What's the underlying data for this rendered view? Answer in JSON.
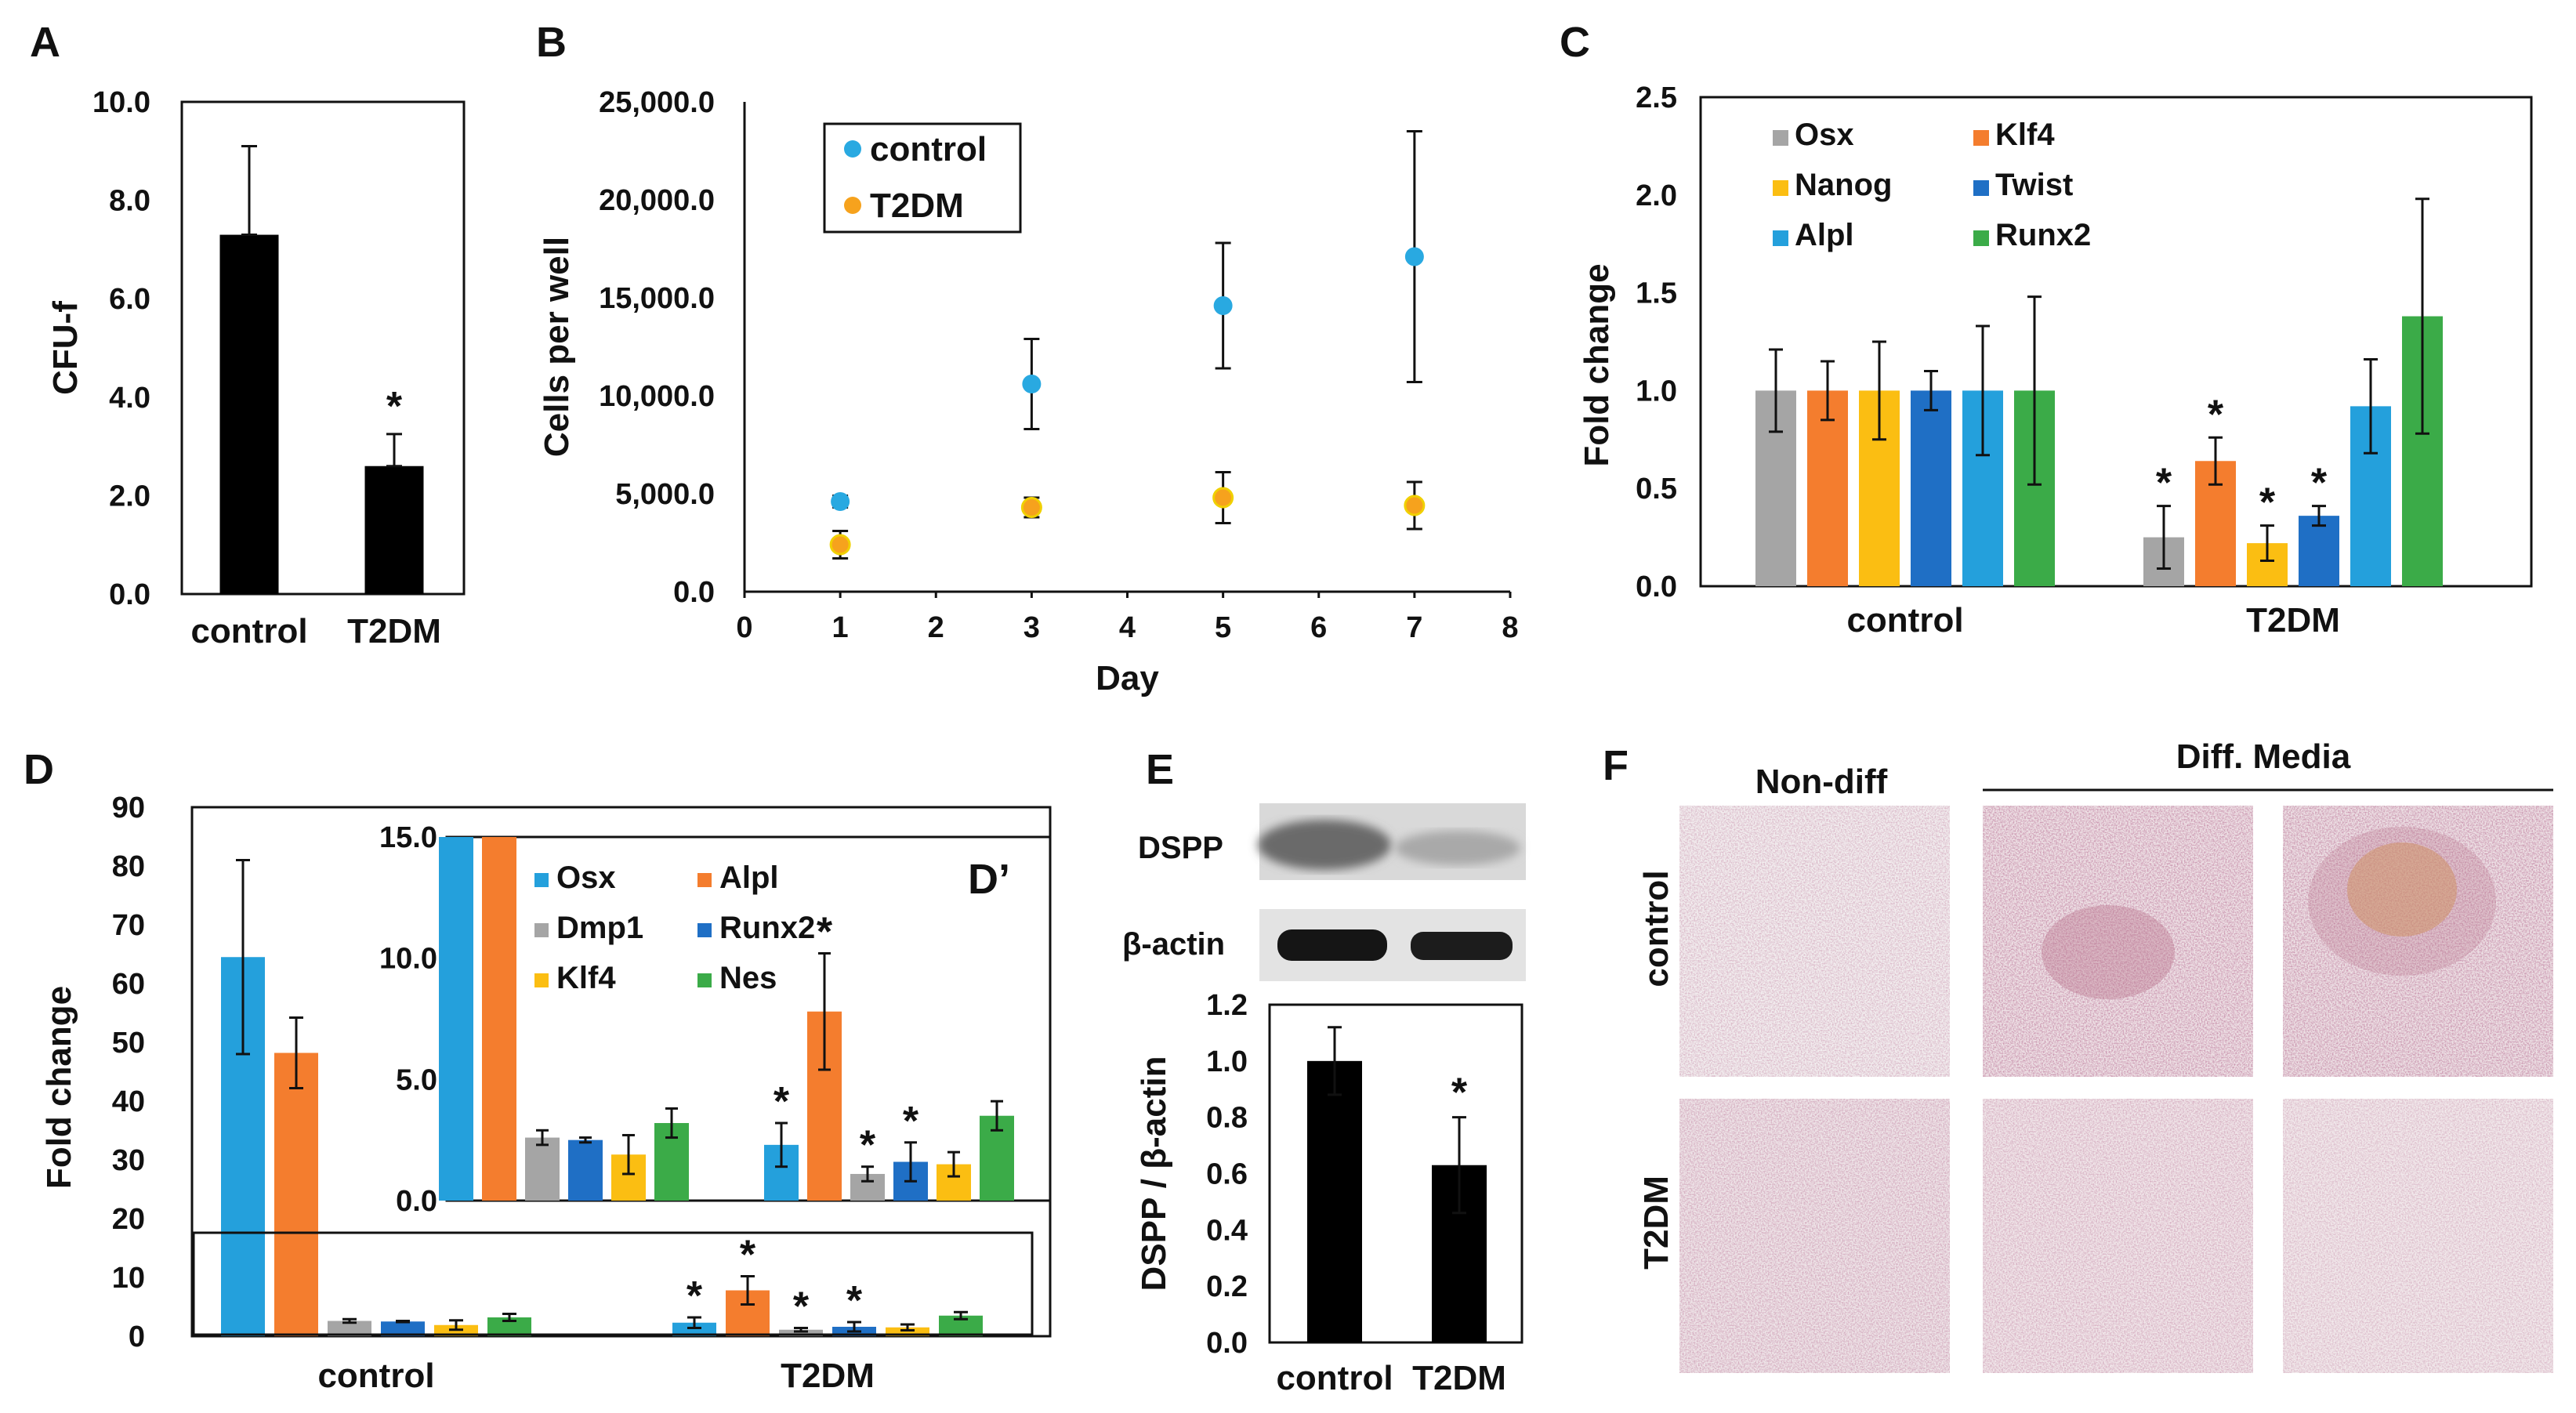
{
  "chart_data": [
    {
      "id": "A",
      "type": "bar",
      "panel_label": "A",
      "ylabel": "CFU-f",
      "xlabel": "",
      "categories": [
        "control",
        "T2DM"
      ],
      "values": [
        7.3,
        2.6
      ],
      "errors": [
        1.8,
        0.65
      ],
      "significant": [
        false,
        true
      ],
      "ylim": [
        0,
        10
      ],
      "yticks": [
        "0.0",
        "2.0",
        "4.0",
        "6.0",
        "8.0",
        "10.0"
      ],
      "bar_color": "#000000",
      "star": "*"
    },
    {
      "id": "B",
      "type": "scatter",
      "panel_label": "B",
      "xlabel": "Day",
      "ylabel": "Cells per well",
      "xlim": [
        0,
        8
      ],
      "xticks": [
        "0",
        "1",
        "2",
        "3",
        "4",
        "5",
        "6",
        "7",
        "8"
      ],
      "ylim": [
        0,
        25000
      ],
      "yticks": [
        "0.0",
        "5,000.0",
        "10,000.0",
        "15,000.0",
        "20,000.0",
        "25,000.0"
      ],
      "legend_position": "top-left",
      "series": [
        {
          "name": "control",
          "color": "#29a9e1",
          "x": [
            1,
            3,
            5,
            7
          ],
          "y": [
            4600,
            10600,
            14600,
            17100
          ],
          "err": [
            300,
            2300,
            3200,
            6400
          ]
        },
        {
          "name": "T2DM",
          "color": "#f6a21d",
          "x": [
            1,
            3,
            5,
            7
          ],
          "y": [
            2400,
            4300,
            4800,
            4400
          ],
          "err": [
            700,
            500,
            1300,
            1200
          ]
        }
      ]
    },
    {
      "id": "C",
      "type": "bar",
      "panel_label": "C",
      "ylabel": "Fold change",
      "xlabel": "",
      "categories": [
        "control",
        "T2DM"
      ],
      "ylim": [
        0,
        2.5
      ],
      "yticks": [
        "0.0",
        "0.5",
        "1.0",
        "1.5",
        "2.0",
        "2.5"
      ],
      "legend_position": "top-left",
      "star": "*",
      "series": [
        {
          "name": "Osx",
          "color": "#a5a5a5",
          "values": [
            1.0,
            0.25
          ],
          "errors": [
            0.21,
            0.16
          ],
          "significant": [
            false,
            true
          ]
        },
        {
          "name": "Klf4",
          "color": "#f47d2e",
          "values": [
            1.0,
            0.64
          ],
          "errors": [
            0.15,
            0.12
          ],
          "significant": [
            false,
            true
          ]
        },
        {
          "name": "Nanog",
          "color": "#fbbe12",
          "values": [
            1.0,
            0.22
          ],
          "errors": [
            0.25,
            0.09
          ],
          "significant": [
            false,
            true
          ]
        },
        {
          "name": "Twist",
          "color": "#1f6fc5",
          "values": [
            1.0,
            0.36
          ],
          "errors": [
            0.1,
            0.05
          ],
          "significant": [
            false,
            true
          ]
        },
        {
          "name": "Alpl",
          "color": "#24a0dc",
          "values": [
            1.0,
            0.92
          ],
          "errors": [
            0.33,
            0.24
          ],
          "significant": [
            false,
            false
          ]
        },
        {
          "name": "Runx2",
          "color": "#3bab48",
          "values": [
            1.0,
            1.38
          ],
          "errors": [
            0.48,
            0.6
          ],
          "significant": [
            false,
            false
          ]
        }
      ]
    },
    {
      "id": "D",
      "type": "bar",
      "panel_label": "D",
      "ylabel": "Fold change",
      "xlabel": "",
      "categories": [
        "control",
        "T2DM"
      ],
      "ylim": [
        0,
        90
      ],
      "yticks": [
        "0",
        "10",
        "20",
        "30",
        "40",
        "50",
        "60",
        "70",
        "80",
        "90"
      ],
      "star": "*",
      "series": [
        {
          "name": "Osx",
          "color": "#24a0dc",
          "values": [
            64.5,
            2.3
          ],
          "errors": [
            16.5,
            0.9
          ],
          "significant": [
            false,
            true
          ]
        },
        {
          "name": "Alpl",
          "color": "#f47d2e",
          "values": [
            48.2,
            7.8
          ],
          "errors": [
            6.0,
            2.4
          ],
          "significant": [
            false,
            true
          ]
        },
        {
          "name": "Dmp1",
          "color": "#a5a5a5",
          "values": [
            2.6,
            1.1
          ],
          "errors": [
            0.3,
            0.3
          ],
          "significant": [
            false,
            true
          ]
        },
        {
          "name": "Runx2",
          "color": "#1f6fc5",
          "values": [
            2.5,
            1.6
          ],
          "errors": [
            0.1,
            0.8
          ],
          "significant": [
            false,
            true
          ]
        },
        {
          "name": "Klf4",
          "color": "#fbbe12",
          "values": [
            1.9,
            1.5
          ],
          "errors": [
            0.8,
            0.5
          ],
          "significant": [
            false,
            false
          ]
        },
        {
          "name": "Nes",
          "color": "#3bab48",
          "values": [
            3.2,
            3.5
          ],
          "errors": [
            0.6,
            0.6
          ],
          "significant": [
            false,
            false
          ]
        }
      ],
      "inset": {
        "label": "D’",
        "ylim": [
          0,
          15
        ],
        "yticks": [
          "0.0",
          "5.0",
          "10.0",
          "15.0"
        ],
        "legend_position": "top-left"
      }
    },
    {
      "id": "E",
      "type": "bar",
      "panel_label": "E",
      "ylabel": "DSPP / β-actin",
      "xlabel": "",
      "categories": [
        "control",
        "T2DM"
      ],
      "values": [
        1.0,
        0.63
      ],
      "errors": [
        0.12,
        0.17
      ],
      "significant": [
        false,
        true
      ],
      "ylim": [
        0,
        1.2
      ],
      "yticks": [
        "0.0",
        "0.2",
        "0.4",
        "0.6",
        "0.8",
        "1.0",
        "1.2"
      ],
      "bar_color": "#000000",
      "star": "*",
      "blot_labels": [
        "DSPP",
        "β-actin"
      ]
    }
  ],
  "panel_f": {
    "label": "F",
    "column_headers": [
      "Non-diff",
      "Diff. Media"
    ],
    "row_labels": [
      "control",
      "T2DM"
    ]
  }
}
